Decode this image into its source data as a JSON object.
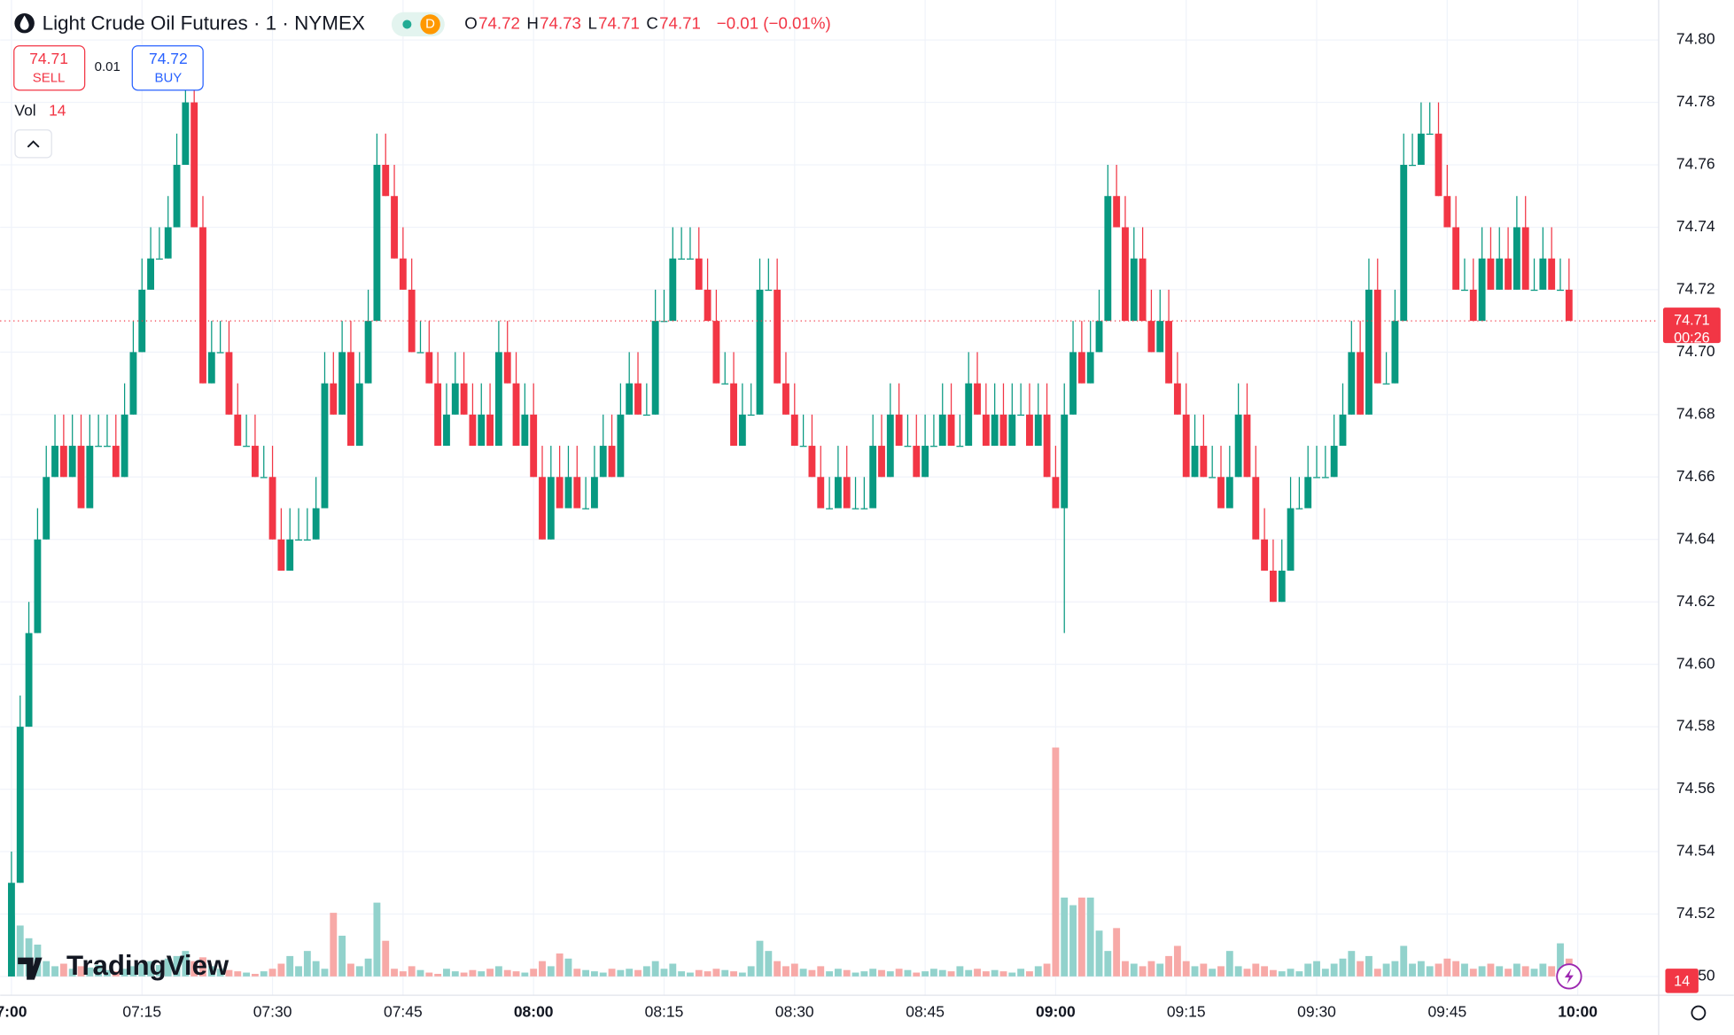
{
  "header": {
    "symbol": "Light Crude Oil Futures · 1 · NYMEX",
    "badge": "D",
    "legend": [
      {
        "key": "O",
        "value": "74.72"
      },
      {
        "key": "H",
        "value": "74.73"
      },
      {
        "key": "L",
        "value": "74.71"
      },
      {
        "key": "C",
        "value": "74.71"
      }
    ],
    "change": "−0.01 (−0.01%)"
  },
  "trade": {
    "sell_price": "74.71",
    "sell": "SELL",
    "spread": "0.01",
    "buy_price": "74.72",
    "buy": "BUY"
  },
  "volume_legend": {
    "label": "Vol",
    "value": "14"
  },
  "price_label": {
    "price": "74.71",
    "countdown": "00:26"
  },
  "volume_label": "14",
  "logo": "TradingView",
  "chart_data": {
    "type": "candlestick",
    "grid": true,
    "up_color": "#089981",
    "down_color": "#f23645",
    "volume_up_color": "#92d2cc",
    "volume_down_color": "#f7a9a7",
    "xlim": [
      -1.3,
      189.3
    ],
    "ylim": [
      74.494,
      74.8128
    ],
    "xticks": [
      {
        "value": 0,
        "label": "7:00"
      },
      {
        "value": 15,
        "label": "07:15"
      },
      {
        "value": 30,
        "label": "07:30"
      },
      {
        "value": 45,
        "label": "07:45"
      },
      {
        "value": 60,
        "label": "08:00"
      },
      {
        "value": 75,
        "label": "08:15"
      },
      {
        "value": 90,
        "label": "08:30"
      },
      {
        "value": 105,
        "label": "08:45"
      },
      {
        "value": 120,
        "label": "09:00"
      },
      {
        "value": 135,
        "label": "09:15"
      },
      {
        "value": 150,
        "label": "09:30"
      },
      {
        "value": 165,
        "label": "09:45"
      },
      {
        "value": 180,
        "label": "10:00"
      }
    ],
    "yticks": [
      {
        "value": 74.5,
        "label": "74.50"
      },
      74.52,
      74.54,
      74.56,
      74.58,
      {
        "value": 74.6,
        "label": "74.60"
      },
      74.62,
      74.64,
      74.66,
      74.68,
      {
        "value": 74.7,
        "label": "74.70"
      },
      74.72,
      74.74,
      74.76,
      74.78,
      {
        "value": 74.8,
        "label": "74.80"
      }
    ],
    "open": [
      74.5,
      74.53,
      74.58,
      74.61,
      74.64,
      74.66,
      74.67,
      74.66,
      74.67,
      74.65,
      74.67,
      74.67,
      74.67,
      74.66,
      74.68,
      74.7,
      74.72,
      74.73,
      74.73,
      74.74,
      74.76,
      74.78,
      74.74,
      74.69,
      74.7,
      74.7,
      74.68,
      74.67,
      74.67,
      74.66,
      74.66,
      74.64,
      74.63,
      74.64,
      74.64,
      74.64,
      74.65,
      74.69,
      74.68,
      74.7,
      74.67,
      74.69,
      74.71,
      74.76,
      74.75,
      74.73,
      74.72,
      74.7,
      74.7,
      74.69,
      74.67,
      74.68,
      74.69,
      74.68,
      74.67,
      74.68,
      74.67,
      74.7,
      74.69,
      74.67,
      74.68,
      74.66,
      74.64,
      74.66,
      74.65,
      74.66,
      74.65,
      74.65,
      74.66,
      74.67,
      74.66,
      74.68,
      74.69,
      74.68,
      74.68,
      74.71,
      74.71,
      74.73,
      74.73,
      74.73,
      74.72,
      74.71,
      74.69,
      74.69,
      74.67,
      74.68,
      74.68,
      74.72,
      74.72,
      74.69,
      74.68,
      74.67,
      74.67,
      74.66,
      74.65,
      74.65,
      74.66,
      74.65,
      74.65,
      74.65,
      74.67,
      74.66,
      74.68,
      74.67,
      74.67,
      74.66,
      74.67,
      74.67,
      74.68,
      74.67,
      74.67,
      74.69,
      74.68,
      74.67,
      74.68,
      74.67,
      74.68,
      74.68,
      74.67,
      74.68,
      74.66,
      74.65,
      74.68,
      74.7,
      74.69,
      74.7,
      74.71,
      74.75,
      74.74,
      74.71,
      74.73,
      74.71,
      74.7,
      74.71,
      74.69,
      74.68,
      74.66,
      74.67,
      74.66,
      74.66,
      74.65,
      74.66,
      74.68,
      74.66,
      74.64,
      74.63,
      74.62,
      74.63,
      74.65,
      74.65,
      74.66,
      74.66,
      74.66,
      74.67,
      74.68,
      74.7,
      74.68,
      74.72,
      74.69,
      74.69,
      74.71,
      74.76,
      74.76,
      74.77,
      74.77,
      74.75,
      74.74,
      74.72,
      74.72,
      74.71,
      74.73,
      74.72,
      74.73,
      74.72,
      74.74,
      74.72,
      74.72,
      74.73,
      74.72,
      74.72
    ],
    "high": [
      74.54,
      74.59,
      74.62,
      74.65,
      74.67,
      74.68,
      74.68,
      74.68,
      74.68,
      74.68,
      74.68,
      74.68,
      74.68,
      74.69,
      74.71,
      74.73,
      74.74,
      74.74,
      74.75,
      74.77,
      74.79,
      74.79,
      74.75,
      74.71,
      74.71,
      74.71,
      74.69,
      74.68,
      74.68,
      74.67,
      74.67,
      74.65,
      74.65,
      74.65,
      74.65,
      74.66,
      74.7,
      74.7,
      74.71,
      74.71,
      74.7,
      74.72,
      74.77,
      74.77,
      74.76,
      74.74,
      74.73,
      74.71,
      74.71,
      74.7,
      74.69,
      74.7,
      74.7,
      74.69,
      74.69,
      74.69,
      74.71,
      74.71,
      74.7,
      74.69,
      74.69,
      74.67,
      74.67,
      74.67,
      74.67,
      74.67,
      74.66,
      74.67,
      74.68,
      74.68,
      74.69,
      74.7,
      74.7,
      74.69,
      74.72,
      74.72,
      74.74,
      74.74,
      74.74,
      74.74,
      74.73,
      74.72,
      74.7,
      74.7,
      74.69,
      74.69,
      74.73,
      74.73,
      74.73,
      74.7,
      74.69,
      74.68,
      74.68,
      74.67,
      74.66,
      74.67,
      74.67,
      74.66,
      74.66,
      74.68,
      74.68,
      74.69,
      74.69,
      74.68,
      74.68,
      74.68,
      74.68,
      74.69,
      74.69,
      74.68,
      74.7,
      74.7,
      74.69,
      74.69,
      74.69,
      74.69,
      74.69,
      74.69,
      74.69,
      74.69,
      74.67,
      74.69,
      74.71,
      74.71,
      74.71,
      74.72,
      74.76,
      74.76,
      74.75,
      74.74,
      74.74,
      74.72,
      74.72,
      74.72,
      74.7,
      74.69,
      74.68,
      74.68,
      74.67,
      74.67,
      74.67,
      74.69,
      74.69,
      74.67,
      74.65,
      74.64,
      74.64,
      74.66,
      74.66,
      74.67,
      74.67,
      74.67,
      74.68,
      74.69,
      74.71,
      74.71,
      74.73,
      74.73,
      74.7,
      74.72,
      74.77,
      74.77,
      74.78,
      74.78,
      74.78,
      74.76,
      74.75,
      74.73,
      74.73,
      74.74,
      74.74,
      74.74,
      74.74,
      74.75,
      74.75,
      74.73,
      74.74,
      74.74,
      74.73,
      74.73
    ],
    "low": [
      74.5,
      74.53,
      74.58,
      74.61,
      74.64,
      74.66,
      74.66,
      74.66,
      74.65,
      74.65,
      74.67,
      74.67,
      74.66,
      74.66,
      74.68,
      74.7,
      74.72,
      74.73,
      74.73,
      74.74,
      74.76,
      74.74,
      74.69,
      74.69,
      74.7,
      74.68,
      74.67,
      74.67,
      74.66,
      74.66,
      74.64,
      74.63,
      74.63,
      74.64,
      74.64,
      74.64,
      74.65,
      74.68,
      74.68,
      74.67,
      74.67,
      74.69,
      74.71,
      74.75,
      74.73,
      74.72,
      74.7,
      74.7,
      74.69,
      74.67,
      74.67,
      74.68,
      74.68,
      74.67,
      74.67,
      74.67,
      74.67,
      74.69,
      74.67,
      74.67,
      74.66,
      74.64,
      74.64,
      74.65,
      74.65,
      74.65,
      74.65,
      74.65,
      74.66,
      74.66,
      74.66,
      74.68,
      74.68,
      74.68,
      74.68,
      74.71,
      74.71,
      74.73,
      74.73,
      74.72,
      74.71,
      74.69,
      74.69,
      74.67,
      74.67,
      74.68,
      74.68,
      74.72,
      74.69,
      74.68,
      74.67,
      74.67,
      74.66,
      74.65,
      74.65,
      74.65,
      74.65,
      74.65,
      74.65,
      74.65,
      74.66,
      74.66,
      74.67,
      74.67,
      74.66,
      74.66,
      74.67,
      74.67,
      74.67,
      74.67,
      74.67,
      74.68,
      74.67,
      74.67,
      74.67,
      74.67,
      74.68,
      74.67,
      74.67,
      74.66,
      74.65,
      74.61,
      74.68,
      74.69,
      74.69,
      74.7,
      74.71,
      74.74,
      74.71,
      74.71,
      74.71,
      74.7,
      74.7,
      74.69,
      74.68,
      74.66,
      74.66,
      74.66,
      74.66,
      74.65,
      74.65,
      74.66,
      74.66,
      74.64,
      74.63,
      74.62,
      74.62,
      74.63,
      74.65,
      74.65,
      74.66,
      74.66,
      74.66,
      74.67,
      74.68,
      74.68,
      74.68,
      74.69,
      74.69,
      74.69,
      74.71,
      74.76,
      74.76,
      74.77,
      74.75,
      74.74,
      74.72,
      74.72,
      74.71,
      74.71,
      74.72,
      74.72,
      74.72,
      74.72,
      74.72,
      74.72,
      74.72,
      74.72,
      74.72,
      74.71
    ],
    "close": [
      74.53,
      74.58,
      74.61,
      74.64,
      74.66,
      74.67,
      74.66,
      74.67,
      74.65,
      74.67,
      74.67,
      74.67,
      74.66,
      74.68,
      74.7,
      74.72,
      74.73,
      74.73,
      74.74,
      74.76,
      74.78,
      74.74,
      74.69,
      74.7,
      74.7,
      74.68,
      74.67,
      74.67,
      74.66,
      74.66,
      74.64,
      74.63,
      74.64,
      74.64,
      74.64,
      74.65,
      74.69,
      74.68,
      74.7,
      74.67,
      74.69,
      74.71,
      74.76,
      74.75,
      74.73,
      74.72,
      74.7,
      74.7,
      74.69,
      74.67,
      74.68,
      74.69,
      74.68,
      74.67,
      74.68,
      74.67,
      74.7,
      74.69,
      74.67,
      74.68,
      74.66,
      74.64,
      74.66,
      74.65,
      74.66,
      74.65,
      74.65,
      74.66,
      74.67,
      74.66,
      74.68,
      74.69,
      74.68,
      74.68,
      74.71,
      74.71,
      74.73,
      74.73,
      74.73,
      74.72,
      74.71,
      74.69,
      74.69,
      74.67,
      74.68,
      74.68,
      74.72,
      74.72,
      74.69,
      74.68,
      74.67,
      74.67,
      74.66,
      74.65,
      74.65,
      74.66,
      74.65,
      74.65,
      74.65,
      74.67,
      74.66,
      74.68,
      74.67,
      74.67,
      74.66,
      74.67,
      74.67,
      74.68,
      74.67,
      74.67,
      74.69,
      74.68,
      74.67,
      74.68,
      74.67,
      74.68,
      74.68,
      74.67,
      74.68,
      74.66,
      74.65,
      74.68,
      74.7,
      74.69,
      74.7,
      74.71,
      74.75,
      74.74,
      74.71,
      74.73,
      74.71,
      74.7,
      74.71,
      74.69,
      74.68,
      74.66,
      74.67,
      74.66,
      74.66,
      74.65,
      74.66,
      74.68,
      74.66,
      74.64,
      74.63,
      74.62,
      74.63,
      74.65,
      74.65,
      74.66,
      74.66,
      74.66,
      74.67,
      74.68,
      74.7,
      74.68,
      74.72,
      74.69,
      74.69,
      74.71,
      74.76,
      74.76,
      74.77,
      74.77,
      74.75,
      74.74,
      74.72,
      74.72,
      74.71,
      74.73,
      74.72,
      74.73,
      74.72,
      74.74,
      74.72,
      74.72,
      74.73,
      74.72,
      74.72,
      74.71
    ],
    "volume": [
      48,
      40,
      30,
      25,
      12,
      8,
      10,
      6,
      8,
      7,
      9,
      5,
      4,
      6,
      8,
      10,
      12,
      9,
      14,
      16,
      20,
      12,
      15,
      8,
      6,
      5,
      4,
      3,
      2,
      4,
      6,
      10,
      16,
      8,
      20,
      12,
      6,
      50,
      32,
      10,
      8,
      14,
      58,
      28,
      6,
      4,
      8,
      5,
      3,
      2,
      6,
      4,
      3,
      5,
      4,
      6,
      8,
      5,
      4,
      3,
      6,
      12,
      8,
      18,
      14,
      6,
      5,
      4,
      3,
      6,
      5,
      6,
      5,
      8,
      12,
      6,
      10,
      4,
      3,
      5,
      4,
      6,
      5,
      4,
      3,
      8,
      28,
      20,
      12,
      8,
      10,
      6,
      5,
      8,
      4,
      6,
      5,
      3,
      4,
      6,
      5,
      4,
      6,
      5,
      3,
      4,
      6,
      5,
      4,
      8,
      5,
      6,
      4,
      5,
      4,
      3,
      6,
      4,
      8,
      10,
      180,
      62,
      56,
      62,
      62,
      36,
      20,
      38,
      12,
      10,
      8,
      12,
      10,
      16,
      24,
      12,
      8,
      10,
      6,
      8,
      20,
      8,
      6,
      10,
      8,
      5,
      4,
      6,
      4,
      10,
      12,
      6,
      10,
      14,
      20,
      12,
      16,
      6,
      10,
      12,
      24,
      10,
      12,
      8,
      10,
      14,
      12,
      10,
      6,
      8,
      10,
      8,
      6,
      10,
      8,
      6,
      10,
      8,
      26,
      14
    ]
  }
}
